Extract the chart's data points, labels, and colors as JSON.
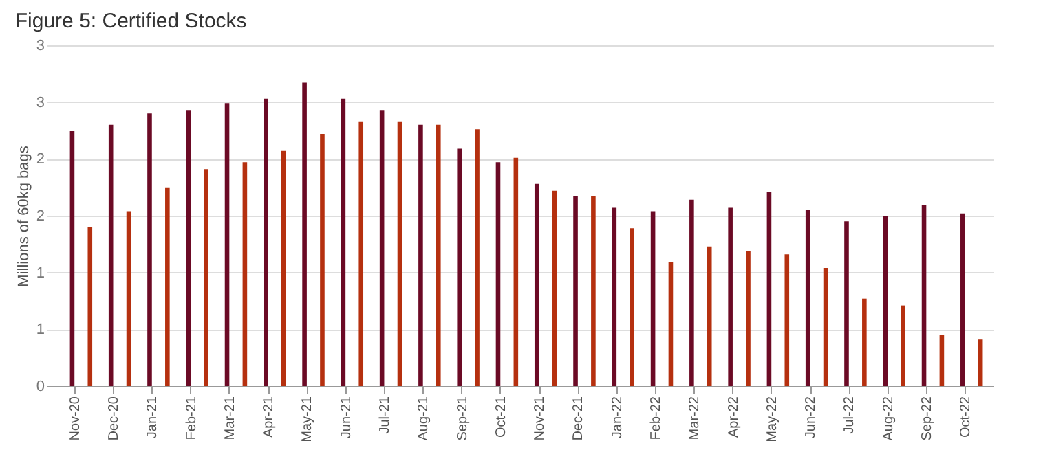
{
  "chart_data": {
    "type": "bar",
    "title": "Figure 5: Certified Stocks",
    "ylabel": "Millions of 60kg bags",
    "categories": [
      "Nov-20",
      "Dec-20",
      "Jan-21",
      "Feb-21",
      "Mar-21",
      "Apr-21",
      "May-21",
      "Jun-21",
      "Jul-21",
      "Aug-21",
      "Sep-21",
      "Oct-21",
      "Nov-21",
      "Dec-21",
      "Jan-22",
      "Feb-22",
      "Mar-22",
      "Apr-22",
      "May-22",
      "Jun-22",
      "Jul-22",
      "Aug-22",
      "Sep-22",
      "Oct-22"
    ],
    "series": [
      {
        "color": "#6b0a25",
        "values": [
          2.25,
          2.3,
          2.4,
          2.43,
          2.49,
          2.53,
          2.67,
          2.53,
          2.43,
          2.3,
          2.09,
          1.97,
          1.78,
          1.67,
          1.57,
          1.54,
          1.64,
          1.57,
          1.71,
          1.55,
          1.45,
          1.5,
          1.59,
          1.52
        ]
      },
      {
        "color": "#b5300f",
        "values": [
          1.4,
          1.54,
          1.75,
          1.91,
          1.97,
          2.07,
          2.22,
          2.33,
          2.33,
          2.3,
          2.26,
          2.01,
          1.72,
          1.67,
          1.39,
          1.09,
          1.23,
          1.19,
          1.16,
          1.04,
          0.77,
          0.71,
          0.45,
          0.41
        ]
      }
    ],
    "ylim": [
      0,
      3
    ],
    "yticks": [
      0,
      {
        "value": 0.5,
        "label": "1"
      },
      1,
      {
        "value": 1.5,
        "label": "2"
      },
      2,
      {
        "value": 2.5,
        "label": "3"
      },
      3
    ],
    "grid": "y",
    "legend": false
  }
}
